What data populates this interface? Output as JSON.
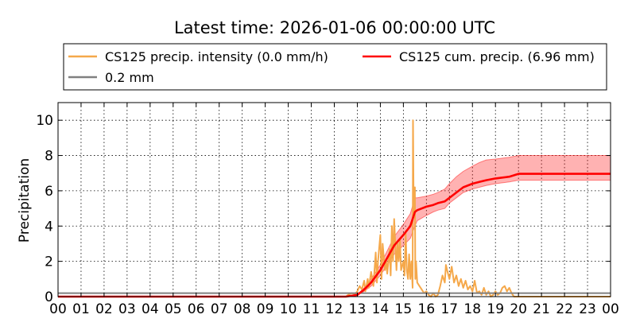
{
  "chart_data": {
    "type": "line",
    "title": "Latest time: 2026-01-06 00:00:00 UTC",
    "xlabel": "",
    "ylabel": "Precipitation",
    "xlim": [
      0,
      24
    ],
    "ylim": [
      0,
      11
    ],
    "grid": true,
    "legend_position": "top",
    "x_tick_labels": [
      "00",
      "01",
      "02",
      "03",
      "04",
      "05",
      "06",
      "07",
      "08",
      "09",
      "10",
      "11",
      "12",
      "13",
      "14",
      "15",
      "16",
      "17",
      "18",
      "19",
      "20",
      "21",
      "22",
      "23",
      "00"
    ],
    "y_ticks": [
      0,
      2,
      4,
      6,
      8,
      10
    ],
    "series": [
      {
        "name": "CS125 precip. intensity (0.0 mm/h)",
        "color": "#f5a84a",
        "unit": "mm/h",
        "x": [
          0,
          12.5,
          12.6,
          12.75,
          12.9,
          13.0,
          13.1,
          13.2,
          13.3,
          13.35,
          13.45,
          13.5,
          13.6,
          13.7,
          13.8,
          13.85,
          13.9,
          14.0,
          14.05,
          14.1,
          14.2,
          14.25,
          14.3,
          14.4,
          14.45,
          14.5,
          14.55,
          14.6,
          14.7,
          14.75,
          14.8,
          14.85,
          14.9,
          15.0,
          15.05,
          15.1,
          15.15,
          15.2,
          15.25,
          15.3,
          15.35,
          15.4,
          15.42,
          15.45,
          15.5,
          15.52,
          15.55,
          15.6,
          15.7,
          15.8,
          15.9,
          16.0,
          16.1,
          16.2,
          16.3,
          16.4,
          16.5,
          16.6,
          16.7,
          16.8,
          16.85,
          16.9,
          17.0,
          17.1,
          17.2,
          17.3,
          17.4,
          17.5,
          17.6,
          17.7,
          17.8,
          17.9,
          18.0,
          18.1,
          18.2,
          18.3,
          18.4,
          18.5,
          18.6,
          18.7,
          18.8,
          18.9,
          19.0,
          19.1,
          19.2,
          19.3,
          19.4,
          19.5,
          19.6,
          19.7,
          19.8,
          19.9,
          20.0,
          24.0
        ],
        "values": [
          0,
          0,
          0.1,
          0.2,
          0.15,
          0.3,
          0.6,
          0.4,
          0.9,
          0.3,
          1.0,
          0.5,
          1.4,
          0.6,
          2.5,
          0.8,
          2.0,
          3.5,
          1.0,
          3.0,
          1.5,
          2.0,
          1.3,
          2.7,
          1.2,
          4.0,
          2.0,
          4.4,
          1.5,
          3.0,
          2.0,
          3.3,
          1.5,
          2.0,
          1.2,
          3.6,
          1.5,
          1.0,
          2.4,
          1.0,
          2.0,
          0.5,
          10.0,
          4.5,
          6.2,
          1.0,
          2.0,
          0.8,
          0.6,
          0.4,
          0.2,
          0.3,
          0.1,
          0.0,
          0.2,
          0.0,
          0.1,
          0.6,
          1.2,
          0.8,
          1.8,
          1.5,
          1.0,
          1.7,
          0.8,
          1.2,
          0.6,
          1.0,
          0.5,
          0.9,
          0.4,
          0.6,
          0.3,
          0.9,
          0.2,
          0.3,
          0.1,
          0.5,
          0.1,
          0.3,
          0.0,
          0.1,
          0.3,
          0.1,
          0.2,
          0.5,
          0.6,
          0.3,
          0.5,
          0.2,
          0.0,
          0.0,
          0.0,
          0.0
        ]
      },
      {
        "name": "CS125 cum. precip. (6.96 mm)",
        "color": "#ff0000",
        "band_color": "#ff0000",
        "unit": "mm",
        "x": [
          0,
          12.5,
          13.0,
          13.3,
          13.6,
          14.0,
          14.3,
          14.6,
          15.0,
          15.3,
          15.5,
          15.6,
          16.0,
          16.3,
          16.5,
          16.8,
          17.0,
          17.3,
          17.6,
          18.0,
          18.3,
          18.6,
          19.0,
          19.3,
          19.6,
          20.0,
          21.0,
          22.0,
          23.0,
          24.0
        ],
        "values": [
          0,
          0,
          0.1,
          0.4,
          0.8,
          1.5,
          2.2,
          2.9,
          3.5,
          4.0,
          4.8,
          4.9,
          5.1,
          5.2,
          5.3,
          5.4,
          5.6,
          5.9,
          6.2,
          6.4,
          6.5,
          6.6,
          6.7,
          6.75,
          6.8,
          6.96,
          6.96,
          6.96,
          6.96,
          6.96
        ],
        "band_low": [
          0,
          0,
          0.08,
          0.3,
          0.6,
          1.2,
          1.8,
          2.4,
          2.9,
          3.3,
          4.0,
          4.3,
          4.6,
          4.8,
          4.9,
          5.0,
          5.3,
          5.6,
          5.9,
          6.1,
          6.2,
          6.3,
          6.4,
          6.45,
          6.5,
          6.6,
          6.6,
          6.6,
          6.6,
          6.6
        ],
        "band_high": [
          0,
          0,
          0.12,
          0.5,
          1.0,
          1.8,
          2.6,
          3.4,
          4.1,
          4.7,
          5.6,
          5.6,
          5.7,
          5.8,
          5.9,
          6.1,
          6.4,
          6.8,
          7.1,
          7.4,
          7.6,
          7.75,
          7.8,
          7.85,
          7.9,
          8.0,
          8.0,
          8.0,
          8.0,
          8.0
        ]
      },
      {
        "name": "0.2 mm",
        "color": "#808080",
        "unit": "mm",
        "x": [
          0,
          24
        ],
        "values": [
          0.2,
          0.2
        ]
      }
    ]
  }
}
